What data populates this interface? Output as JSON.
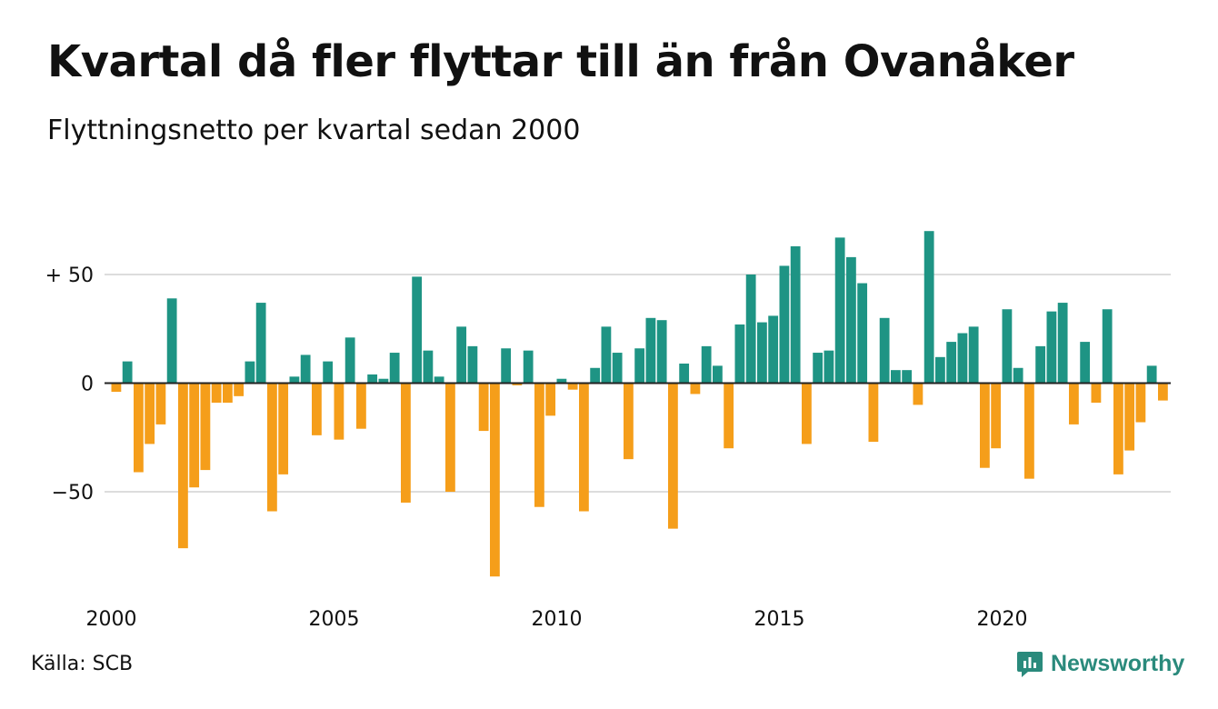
{
  "title": "Kvartal då fler flyttar till än från Ovanåker",
  "subtitle": "Flyttningsnetto per kvartal sedan 2000",
  "source": "Källa: SCB",
  "brand": "Newsworthy",
  "colors": {
    "positive": "#1e9484",
    "negative": "#f59e1a",
    "grid": "#dddddd",
    "axis": "#222222"
  },
  "chart_data": {
    "type": "bar",
    "title": "Kvartal då fler flyttar till än från Ovanåker",
    "subtitle": "Flyttningsnetto per kvartal sedan 2000",
    "xlabel": "",
    "ylabel": "",
    "start_year": 2000,
    "quarters_per_year": 4,
    "ylim": [
      -95,
      75
    ],
    "yticks": [
      {
        "value": 50,
        "label": "+ 50"
      },
      {
        "value": 0,
        "label": "0"
      },
      {
        "value": -50,
        "label": "−50"
      }
    ],
    "xticks": [
      {
        "label": "2000",
        "index": 0
      },
      {
        "label": "2005",
        "index": 20
      },
      {
        "label": "2010",
        "index": 40
      },
      {
        "label": "2015",
        "index": 60
      },
      {
        "label": "2020",
        "index": 80
      }
    ],
    "grid": true,
    "values": [
      -4,
      10,
      -41,
      -28,
      -19,
      39,
      -76,
      -48,
      -40,
      -9,
      -9,
      -6,
      10,
      37,
      -59,
      -42,
      3,
      13,
      -24,
      10,
      -26,
      21,
      -21,
      4,
      2,
      14,
      -55,
      49,
      15,
      3,
      -50,
      26,
      17,
      -22,
      -89,
      16,
      -1,
      15,
      -57,
      -15,
      2,
      -3,
      -59,
      7,
      26,
      14,
      -35,
      16,
      30,
      29,
      -67,
      9,
      -5,
      17,
      8,
      -30,
      27,
      50,
      28,
      31,
      54,
      63,
      -28,
      14,
      15,
      67,
      58,
      46,
      -27,
      30,
      6,
      6,
      -10,
      70,
      12,
      19,
      23,
      26,
      -39,
      -30,
      34,
      7,
      -44,
      17,
      33,
      37,
      -19,
      19,
      -9,
      34,
      -42,
      -31,
      -18,
      8,
      -8
    ]
  }
}
